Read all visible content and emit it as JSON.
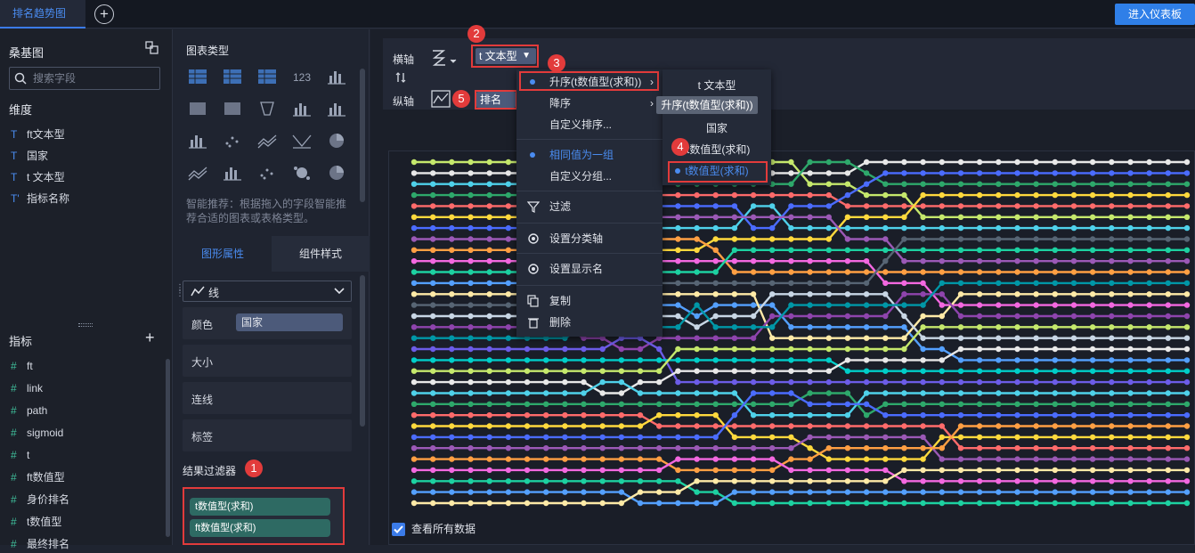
{
  "topbar": {
    "tab_label": "排名趋势图",
    "add_tab": "+",
    "dashboard_button": "进入仪表板"
  },
  "left_panel": {
    "title": "桑基图",
    "search_placeholder": "搜索字段",
    "dimension_title": "维度",
    "dimensions": [
      {
        "type_icon": "T",
        "label": "ft文本型"
      },
      {
        "type_icon": "T",
        "label": "国家"
      },
      {
        "type_icon": "T",
        "label": "t 文本型"
      },
      {
        "type_icon": "T'",
        "label": "指标名称"
      }
    ],
    "metric_title": "指标",
    "metric_add": "+",
    "metrics": [
      {
        "type_icon": "#",
        "label": "ft"
      },
      {
        "type_icon": "#",
        "label": "link"
      },
      {
        "type_icon": "#",
        "label": "path"
      },
      {
        "type_icon": "#",
        "label": "sigmoid"
      },
      {
        "type_icon": "#",
        "label": "t"
      },
      {
        "type_icon": "#",
        "label": "ft数值型"
      },
      {
        "type_icon": "#",
        "label": "身价排名"
      },
      {
        "type_icon": "#",
        "label": "t数值型"
      },
      {
        "type_icon": "#",
        "label": "最终排名"
      }
    ]
  },
  "middle_panel": {
    "chart_type_title": "图表类型",
    "chart_types": [
      {
        "icon": "table-icon",
        "label": ""
      },
      {
        "icon": "cross-table-icon",
        "label": ""
      },
      {
        "icon": "detail-table-icon",
        "label": ""
      },
      {
        "icon": "kpi-icon",
        "label": "123"
      },
      {
        "icon": "bar-grid-icon",
        "label": ""
      },
      {
        "icon": "grid-map-icon",
        "label": ""
      },
      {
        "icon": "heat-map-icon",
        "label": ""
      },
      {
        "icon": "funnel-icon",
        "label": ""
      },
      {
        "icon": "column-icon",
        "label": ""
      },
      {
        "icon": "stacked-column-icon",
        "label": ""
      },
      {
        "icon": "dot-column-icon",
        "label": ""
      },
      {
        "icon": "scatter-icon",
        "label": ""
      },
      {
        "icon": "wave-icon",
        "label": ""
      },
      {
        "icon": "radar-line-icon",
        "label": ""
      },
      {
        "icon": "polygon-icon",
        "label": ""
      },
      {
        "icon": "area-icon",
        "label": ""
      },
      {
        "icon": "box-icon",
        "label": ""
      },
      {
        "icon": "dot-icon",
        "label": ""
      },
      {
        "icon": "bubble-icon",
        "label": ""
      },
      {
        "icon": "pie-icon",
        "label": ""
      }
    ],
    "hint": "智能推荐：根据拖入的字段智能推荐合适的图表或表格类型。",
    "tab_shape": "图形属性",
    "tab_style": "组件样式",
    "line_type": "线",
    "props": {
      "color_label": "颜色",
      "color_value": "国家",
      "size_label": "大小",
      "connect_label": "连线",
      "label_label": "标签"
    },
    "filter_title": "结果过滤器",
    "filter_chips": [
      "t数值型(求和)",
      "ft数值型(求和)"
    ]
  },
  "axis": {
    "x_label": "横轴",
    "x_field": "t 文本型",
    "y_label": "纵轴",
    "y_field": "排名",
    "swap_icon": "swap-icon"
  },
  "context_menu": {
    "items": [
      {
        "label": "升序(t数值型(求和))",
        "selected": true,
        "submenu": true
      },
      {
        "label": "降序",
        "selected": false,
        "submenu": true
      },
      {
        "label": "自定义排序...",
        "selected": false
      },
      {
        "label": "相同值为一组",
        "selected": true
      },
      {
        "label": "自定义分组...",
        "selected": false
      },
      {
        "label": "过滤",
        "icon": "filter-icon"
      },
      {
        "label": "设置分类轴",
        "icon": "gear-icon"
      },
      {
        "label": "设置显示名",
        "icon": "gear-icon"
      },
      {
        "label": "复制",
        "icon": "copy-icon"
      },
      {
        "label": "删除",
        "icon": "trash-icon"
      }
    ]
  },
  "sub_menu": {
    "items": [
      {
        "label": "t 文本型",
        "selected": false
      },
      {
        "label": "国家",
        "selected": false
      },
      {
        "label": "ft数值型(求和)",
        "selected": false
      },
      {
        "label": "t数值型(求和)",
        "selected": true
      }
    ],
    "tooltip": "升序(t数值型(求和))"
  },
  "badges": [
    "1",
    "2",
    "3",
    "4",
    "5"
  ],
  "view_all_label": "查看所有数据",
  "view_all_checked": true,
  "colors": {
    "accent": "#3b7be8",
    "highlight_red": "#e23b3b",
    "series": [
      "#c5e86c",
      "#e8e8e8",
      "#4fd1ea",
      "#2ea86b",
      "#ff6b6b",
      "#ffd93d",
      "#4b6cff",
      "#9b59b6",
      "#ff9f43",
      "#f368e0",
      "#1dd1a1",
      "#54a0ff",
      "#ffeaa7",
      "#576574",
      "#c8d6e5",
      "#8e44ad",
      "#0097a7",
      "#6c5ce7",
      "#00cec9"
    ]
  },
  "chart_data": {
    "type": "line",
    "title": "",
    "xlabel": "t 文本型",
    "ylabel": "排名",
    "grid": false,
    "legend": "none",
    "series_count": 32,
    "points_per_series": 42
  }
}
